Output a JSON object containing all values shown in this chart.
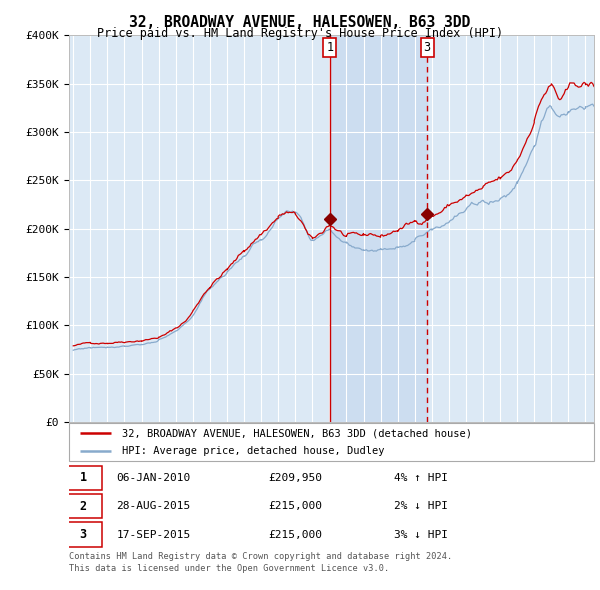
{
  "title": "32, BROADWAY AVENUE, HALESOWEN, B63 3DD",
  "subtitle": "Price paid vs. HM Land Registry's House Price Index (HPI)",
  "legend_line1": "32, BROADWAY AVENUE, HALESOWEN, B63 3DD (detached house)",
  "legend_line2": "HPI: Average price, detached house, Dudley",
  "transactions": [
    {
      "num": 1,
      "date": "06-JAN-2010",
      "price": 209950,
      "pct": "4%",
      "dir": "↑",
      "x_year": 2010.02
    },
    {
      "num": 2,
      "date": "28-AUG-2015",
      "price": 215000,
      "pct": "2%",
      "dir": "↓",
      "x_year": 2015.66
    },
    {
      "num": 3,
      "date": "17-SEP-2015",
      "price": 215000,
      "pct": "3%",
      "dir": "↓",
      "x_year": 2015.72
    }
  ],
  "vline1_x": 2010.02,
  "vline3_x": 2015.72,
  "marker1_y": 209950,
  "marker23_y": 215000,
  "ylim": [
    0,
    400000
  ],
  "xlim_start": 1994.75,
  "xlim_end": 2025.5,
  "background_color": "#ffffff",
  "plot_bg_color": "#dce9f5",
  "grid_color": "#ffffff",
  "red_line_color": "#cc0000",
  "blue_line_color": "#88aacc",
  "highlight_fill_color": "#ccddf0",
  "vline_color": "#cc0000",
  "footnote_line1": "Contains HM Land Registry data © Crown copyright and database right 2024.",
  "footnote_line2": "This data is licensed under the Open Government Licence v3.0."
}
